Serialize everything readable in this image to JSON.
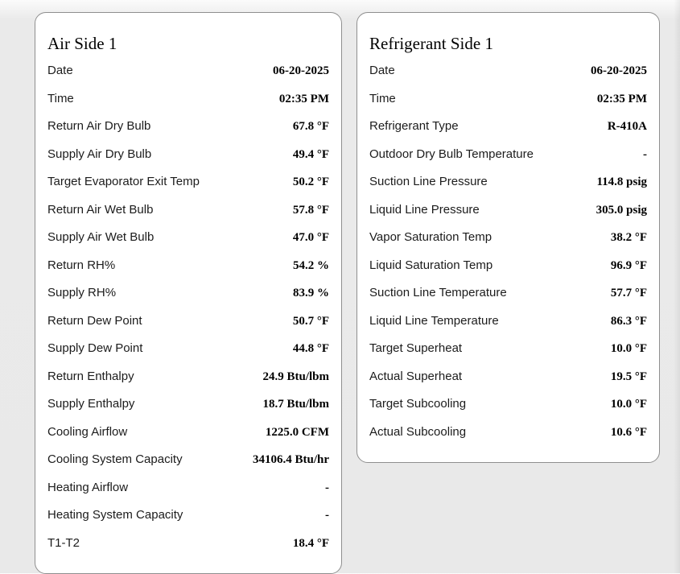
{
  "page": {
    "background": "#e9e9e9",
    "card_background": "#ffffff",
    "card_border": "#8f8f8f"
  },
  "cards": [
    {
      "title": "Air Side 1",
      "rows": [
        {
          "label": "Date",
          "value": "06-20-2025"
        },
        {
          "label": "Time",
          "value": "02:35 PM"
        },
        {
          "label": "Return Air Dry Bulb",
          "value": "67.8 °F"
        },
        {
          "label": "Supply Air Dry Bulb",
          "value": "49.4 °F"
        },
        {
          "label": "Target Evaporator Exit Temp",
          "value": "50.2 °F"
        },
        {
          "label": "Return Air Wet Bulb",
          "value": "57.8 °F"
        },
        {
          "label": "Supply Air Wet Bulb",
          "value": "47.0 °F"
        },
        {
          "label": "Return RH%",
          "value": "54.2 %"
        },
        {
          "label": "Supply RH%",
          "value": "83.9 %"
        },
        {
          "label": "Return Dew Point",
          "value": "50.7 °F"
        },
        {
          "label": "Supply Dew Point",
          "value": "44.8 °F"
        },
        {
          "label": "Return Enthalpy",
          "value": "24.9 Btu/lbm"
        },
        {
          "label": "Supply Enthalpy",
          "value": "18.7 Btu/lbm"
        },
        {
          "label": "Cooling Airflow",
          "value": "1225.0 CFM"
        },
        {
          "label": "Cooling System Capacity",
          "value": "34106.4 Btu/hr"
        },
        {
          "label": "Heating Airflow",
          "value": "-"
        },
        {
          "label": "Heating System Capacity",
          "value": "-"
        },
        {
          "label": "T1-T2",
          "value": "18.4 °F"
        }
      ]
    },
    {
      "title": "Refrigerant Side 1",
      "rows": [
        {
          "label": "Date",
          "value": "06-20-2025"
        },
        {
          "label": "Time",
          "value": "02:35 PM"
        },
        {
          "label": "Refrigerant Type",
          "value": "R-410A"
        },
        {
          "label": "Outdoor Dry Bulb Temperature",
          "value": "-"
        },
        {
          "label": "Suction Line Pressure",
          "value": "114.8 psig"
        },
        {
          "label": "Liquid Line Pressure",
          "value": "305.0 psig"
        },
        {
          "label": "Vapor Saturation Temp",
          "value": "38.2 °F"
        },
        {
          "label": "Liquid Saturation Temp",
          "value": "96.9 °F"
        },
        {
          "label": "Suction Line Temperature",
          "value": "57.7 °F"
        },
        {
          "label": "Liquid Line Temperature",
          "value": "86.3 °F"
        },
        {
          "label": "Target Superheat",
          "value": "10.0 °F"
        },
        {
          "label": "Actual Superheat",
          "value": "19.5 °F"
        },
        {
          "label": "Target Subcooling",
          "value": "10.0 °F"
        },
        {
          "label": "Actual Subcooling",
          "value": "10.6 °F"
        }
      ]
    }
  ]
}
